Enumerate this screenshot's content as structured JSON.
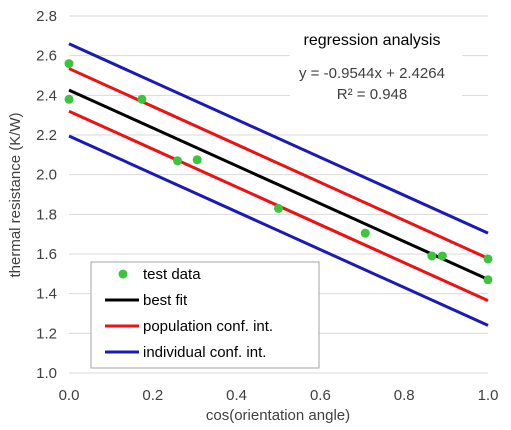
{
  "chart_data": {
    "type": "scatter",
    "xlabel": "cos(orientation angle)",
    "ylabel": "thermal resistance (K/W)",
    "xlim": [
      0.0,
      1.0
    ],
    "ylim": [
      1.0,
      2.8
    ],
    "xticks": [
      "0.0",
      "0.2",
      "0.4",
      "0.6",
      "0.8",
      "1.0"
    ],
    "yticks": [
      "1.0",
      "1.2",
      "1.4",
      "1.6",
      "1.8",
      "2.0",
      "2.2",
      "2.4",
      "2.6",
      "2.8"
    ],
    "grid": "horizontal",
    "legend_position": "bottom-left",
    "series": [
      {
        "name": "test data",
        "kind": "points",
        "color": "#3cc43c",
        "x": [
          0.0,
          0.0,
          0.174,
          0.259,
          0.306,
          0.5,
          0.707,
          0.866,
          0.891,
          1.0,
          1.0
        ],
        "y": [
          2.56,
          2.38,
          2.38,
          2.07,
          2.075,
          1.83,
          1.705,
          1.59,
          1.59,
          1.575,
          1.47
        ]
      },
      {
        "name": "best fit",
        "kind": "line",
        "color": "#000000",
        "x": [
          0.0,
          1.0
        ],
        "y": [
          2.4264,
          1.472
        ]
      },
      {
        "name": "population conf. int.",
        "kind": "line",
        "color": "#ee1111",
        "x": [
          0.0,
          1.0
        ],
        "y": [
          2.535,
          1.578
        ]
      },
      {
        "name": "population conf. int.",
        "kind": "line",
        "color": "#ee1111",
        "x": [
          0.0,
          1.0
        ],
        "y": [
          2.32,
          1.365
        ]
      },
      {
        "name": "individual conf. int.",
        "kind": "line",
        "color": "#1a1ab8",
        "x": [
          0.0,
          1.0
        ],
        "y": [
          2.66,
          1.705
        ]
      },
      {
        "name": "individual conf. int.",
        "kind": "line",
        "color": "#1a1ab8",
        "x": [
          0.0,
          1.0
        ],
        "y": [
          2.195,
          1.24
        ]
      }
    ],
    "legend": [
      {
        "label": "test data",
        "marker": "point",
        "color": "#3cc43c"
      },
      {
        "label": "best fit",
        "marker": "line",
        "color": "#000000"
      },
      {
        "label": "population conf. int.",
        "marker": "line",
        "color": "#ee1111"
      },
      {
        "label": "individual conf. int.",
        "marker": "line",
        "color": "#1a1ab8"
      }
    ],
    "annotation": {
      "title": "regression analysis",
      "equation": "y = -0.9544x + 2.4264",
      "r_squared": "R² = 0.948"
    }
  }
}
